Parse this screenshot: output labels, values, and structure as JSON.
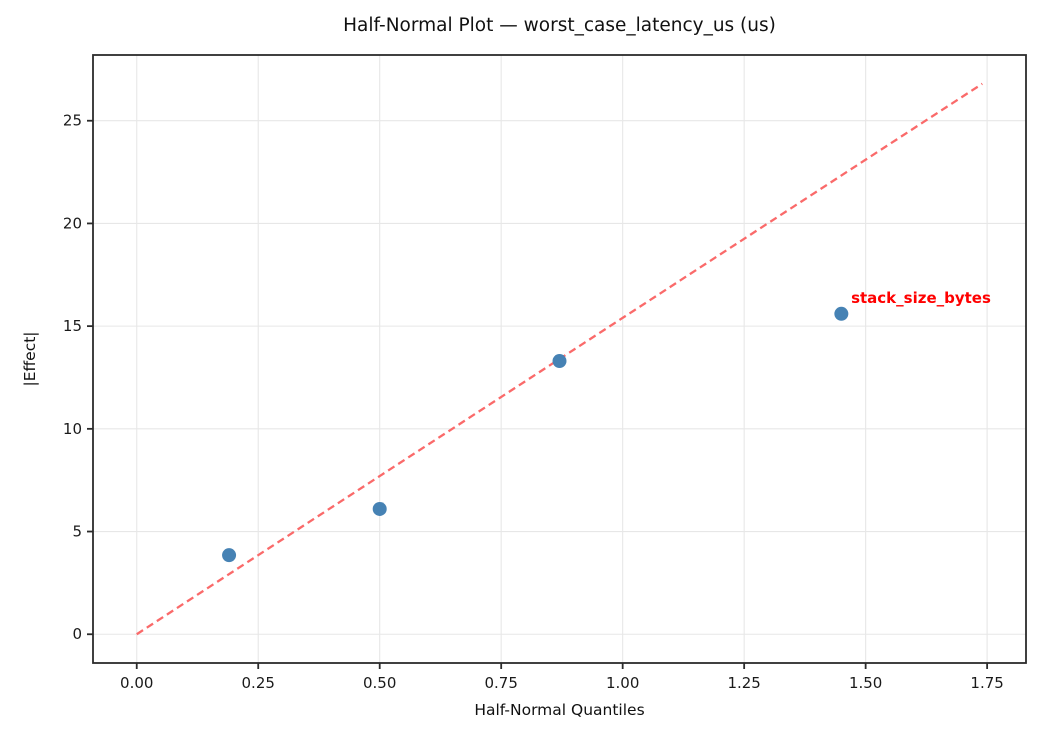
{
  "chart_data": {
    "type": "scatter",
    "title": "Half-Normal Plot — worst_case_latency_us (us)",
    "xlabel": "Half-Normal Quantiles",
    "ylabel": "|Effect|",
    "xlim": [
      -0.09,
      1.83
    ],
    "ylim": [
      -1.4,
      28.2
    ],
    "grid": true,
    "legend": "none",
    "xticks": {
      "values": [
        0,
        0.25,
        0.5,
        0.75,
        1.0,
        1.25,
        1.5,
        1.75
      ],
      "labels": [
        "0.00",
        "0.25",
        "0.50",
        "0.75",
        "1.00",
        "1.25",
        "1.50",
        "1.75"
      ]
    },
    "yticks": {
      "values": [
        0,
        5,
        10,
        15,
        20,
        25
      ],
      "labels": [
        "0",
        "5",
        "10",
        "15",
        "20",
        "25"
      ]
    },
    "points": [
      {
        "x": 0.19,
        "y": 3.85
      },
      {
        "x": 0.5,
        "y": 6.1
      },
      {
        "x": 0.87,
        "y": 13.3
      },
      {
        "x": 1.45,
        "y": 15.6
      }
    ],
    "reference_line": {
      "x1": 0,
      "y1": 0,
      "x2": 1.74,
      "y2": 26.8,
      "style": "dashed"
    },
    "annotation": {
      "text": "stack_size_bytes",
      "x": 1.47,
      "y": 16.35
    },
    "colors": {
      "point": "#4682b4",
      "reference_line": "#fa6a6a",
      "annotation": "#ff0000",
      "grid": "#e7e7e7",
      "spine": "#2b2b2b",
      "tick_text": "#1a1a1a"
    }
  }
}
